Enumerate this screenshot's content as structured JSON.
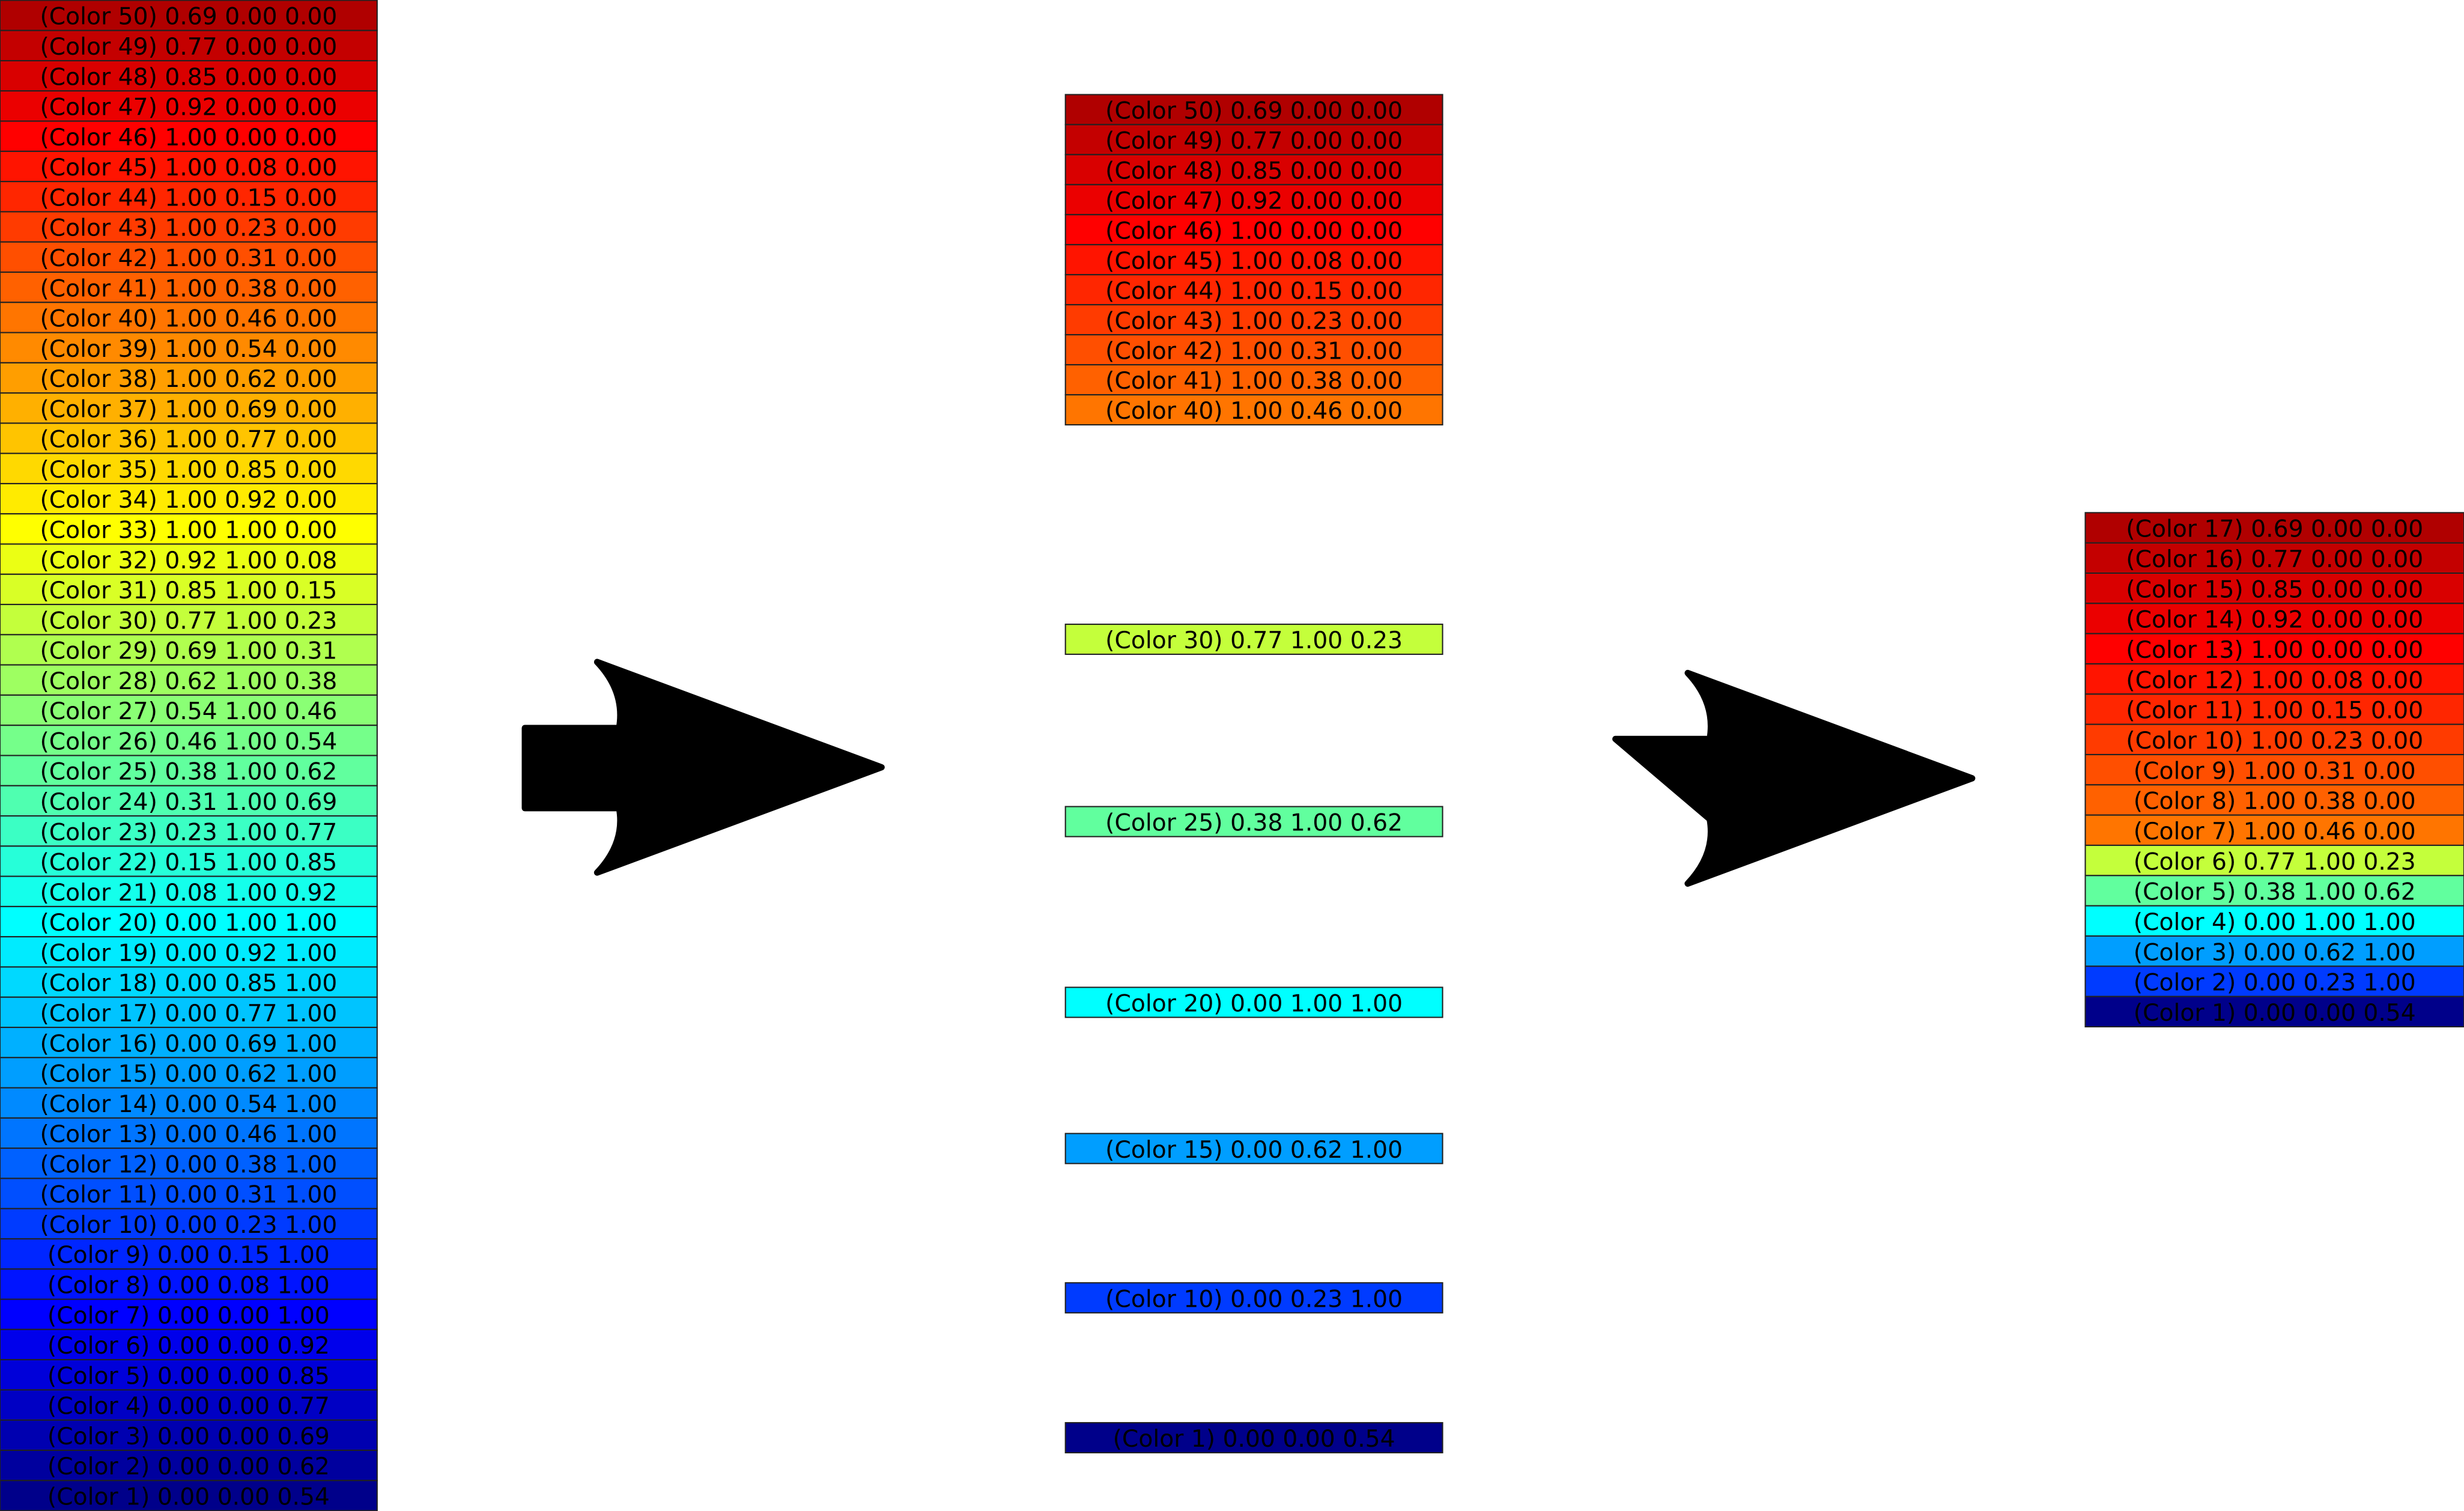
{
  "columns": [
    {
      "items": [
        "(Color 50) 0.69 0.00 0.00",
        "(Color 49) 0.77 0.00 0.00",
        "(Color 48) 0.85 0.00 0.00",
        "(Color 47) 0.92 0.00 0.00",
        "(Color 46) 1.00 0.00 0.00",
        "(Color 45) 1.00 0.08 0.00",
        "(Color 44) 1.00 0.15 0.00",
        "(Color 43) 1.00 0.23 0.00",
        "(Color 42) 1.00 0.31 0.00",
        "(Color 41) 1.00 0.38 0.00",
        "(Color 40) 1.00 0.46 0.00",
        "(Color 39) 1.00 0.54 0.00",
        "(Color 38) 1.00 0.62 0.00",
        "(Color 37) 1.00 0.69 0.00",
        "(Color 36) 1.00 0.77 0.00",
        "(Color 35) 1.00 0.85 0.00",
        "(Color 34) 1.00 0.92 0.00",
        "(Color 33) 1.00 1.00 0.00",
        "(Color 32) 0.92 1.00 0.08",
        "(Color 31) 0.85 1.00 0.15",
        "(Color 30) 0.77 1.00 0.23",
        "(Color 29) 0.69 1.00 0.31",
        "(Color 28) 0.62 1.00 0.38",
        "(Color 27) 0.54 1.00 0.46",
        "(Color 26) 0.46 1.00 0.54",
        "(Color 25) 0.38 1.00 0.62",
        "(Color 24) 0.31 1.00 0.69",
        "(Color 23) 0.23 1.00 0.77",
        "(Color 22) 0.15 1.00 0.85",
        "(Color 21) 0.08 1.00 0.92",
        "(Color 20) 0.00 1.00 1.00",
        "(Color 19) 0.00 0.92 1.00",
        "(Color 18) 0.00 0.85 1.00",
        "(Color 17) 0.00 0.77 1.00",
        "(Color 16) 0.00 0.69 1.00",
        "(Color 15) 0.00 0.62 1.00",
        "(Color 14) 0.00 0.54 1.00",
        "(Color 13) 0.00 0.46 1.00",
        "(Color 12) 0.00 0.38 1.00",
        "(Color 11) 0.00 0.31 1.00",
        "(Color 10) 0.00 0.23 1.00",
        "(Color 9) 0.00 0.15 1.00",
        "(Color 8) 0.00 0.08 1.00",
        "(Color 7) 0.00 0.00 1.00",
        "(Color 6) 0.00 0.00 0.92",
        "(Color 5) 0.00 0.00 0.85",
        "(Color 4) 0.00 0.00 0.77",
        "(Color 3) 0.00 0.00 0.69",
        "(Color 2) 0.00 0.00 0.62",
        "(Color 1) 0.00 0.00 0.54"
      ]
    },
    {
      "items": [
        "(Color 50) 0.69 0.00 0.00",
        "(Color 49) 0.77 0.00 0.00",
        "(Color 48) 0.85 0.00 0.00",
        "(Color 47) 0.92 0.00 0.00",
        "(Color 46) 1.00 0.00 0.00",
        "(Color 45) 1.00 0.08 0.00",
        "(Color 44) 1.00 0.15 0.00",
        "(Color 43) 1.00 0.23 0.00",
        "(Color 42) 1.00 0.31 0.00",
        "(Color 41) 1.00 0.38 0.00",
        "(Color 40) 1.00 0.46 0.00",
        "(Color 30) 0.77 1.00 0.23",
        "(Color 25) 0.38 1.00 0.62",
        "(Color 20) 0.00 1.00 1.00",
        "(Color 15) 0.00 0.62 1.00",
        "(Color 10) 0.00 0.23 1.00",
        "(Color 1) 0.00 0.00 0.54"
      ]
    },
    {
      "items": [
        "(Color 17) 0.69 0.00 0.00",
        "(Color 16) 0.77 0.00 0.00",
        "(Color 15) 0.85 0.00 0.00",
        "(Color 14) 0.92 0.00 0.00",
        "(Color 13) 1.00 0.00 0.00",
        "(Color 12) 1.00 0.08 0.00",
        "(Color 11) 1.00 0.15 0.00",
        "(Color 10) 1.00 0.23 0.00",
        "(Color 9) 1.00 0.31 0.00",
        "(Color 8) 1.00 0.38 0.00",
        "(Color 7) 1.00 0.46 0.00",
        "(Color 6) 0.77 1.00 0.23",
        "(Color 5) 0.38 1.00 0.62",
        "(Color 4) 0.00 1.00 1.00",
        "(Color 3) 0.00 0.62 1.00",
        "(Color 2) 0.00 0.23 1.00",
        "(Color 1) 0.00 0.00 0.54"
      ]
    }
  ]
}
